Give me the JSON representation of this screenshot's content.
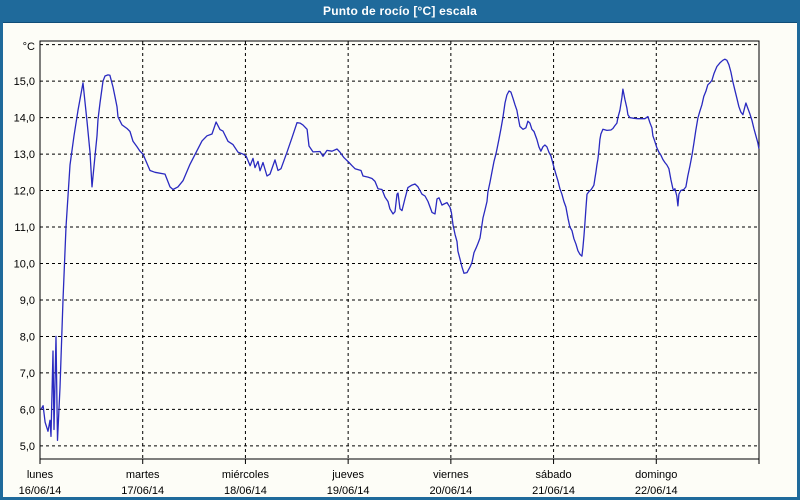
{
  "window": {
    "title": "Punto de rocío [°C] escala"
  },
  "colors": {
    "frame": "#1f6a9b",
    "frame_dark": "#0f4d78",
    "series_line": "#2a2ac0",
    "grid": "#000000",
    "text": "#000000",
    "plot_background": "#fdfdf7"
  },
  "chart_data": {
    "type": "line",
    "title": "Punto de rocío [°C] escala",
    "ylabel": "°C",
    "grid": "dashed",
    "legend": "none",
    "ylim": [
      4.64,
      16.1
    ],
    "xlim_days": [
      0,
      7
    ],
    "yticks": [
      {
        "v": 5,
        "label": "5,0"
      },
      {
        "v": 6,
        "label": "6,0"
      },
      {
        "v": 7,
        "label": "7,0"
      },
      {
        "v": 8,
        "label": "8,0"
      },
      {
        "v": 9,
        "label": "9,0"
      },
      {
        "v": 10,
        "label": "10,0"
      },
      {
        "v": 11,
        "label": "11,0"
      },
      {
        "v": 12,
        "label": "12,0"
      },
      {
        "v": 13,
        "label": "13,0"
      },
      {
        "v": 14,
        "label": "14,0"
      },
      {
        "v": 15,
        "label": "15,0"
      }
    ],
    "ygrid_extra": [
      16
    ],
    "x_axis": {
      "days": [
        {
          "name": "lunes",
          "date": "16/06/14"
        },
        {
          "name": "martes",
          "date": "17/06/14"
        },
        {
          "name": "miércoles",
          "date": "18/06/14"
        },
        {
          "name": "jueves",
          "date": "19/06/14"
        },
        {
          "name": "viernes",
          "date": "20/06/14"
        },
        {
          "name": "sábado",
          "date": "21/06/14"
        },
        {
          "name": "domingo",
          "date": "22/06/14"
        }
      ]
    },
    "series": [
      {
        "name": "Punto de rocío [°C]",
        "color": "#2a2ac0",
        "points": [
          [
            0.01,
            6.0
          ],
          [
            0.03,
            6.1
          ],
          [
            0.05,
            5.65
          ],
          [
            0.078,
            5.4
          ],
          [
            0.097,
            5.7
          ],
          [
            0.107,
            5.26
          ],
          [
            0.127,
            7.6
          ],
          [
            0.136,
            5.45
          ],
          [
            0.156,
            8.0
          ],
          [
            0.17,
            5.15
          ],
          [
            0.195,
            6.6
          ],
          [
            0.224,
            9.0
          ],
          [
            0.253,
            11.0
          ],
          [
            0.292,
            12.7
          ],
          [
            0.331,
            13.5
          ],
          [
            0.37,
            14.2
          ],
          [
            0.419,
            14.95
          ],
          [
            0.458,
            13.9
          ],
          [
            0.487,
            13.05
          ],
          [
            0.506,
            12.1
          ],
          [
            0.535,
            12.95
          ],
          [
            0.555,
            13.5
          ],
          [
            0.565,
            13.95
          ],
          [
            0.584,
            14.4
          ],
          [
            0.613,
            15.0
          ],
          [
            0.633,
            15.14
          ],
          [
            0.662,
            15.17
          ],
          [
            0.681,
            15.16
          ],
          [
            0.711,
            14.84
          ],
          [
            0.73,
            14.57
          ],
          [
            0.75,
            14.3
          ],
          [
            0.759,
            14.02
          ],
          [
            0.798,
            13.8
          ],
          [
            0.847,
            13.7
          ],
          [
            0.876,
            13.62
          ],
          [
            0.905,
            13.35
          ],
          [
            0.944,
            13.2
          ],
          [
            0.974,
            13.08
          ],
          [
            1.003,
            13.0
          ],
          [
            1.071,
            12.55
          ],
          [
            1.12,
            12.5
          ],
          [
            1.217,
            12.45
          ],
          [
            1.266,
            12.1
          ],
          [
            1.295,
            12.03
          ],
          [
            1.343,
            12.1
          ],
          [
            1.392,
            12.27
          ],
          [
            1.46,
            12.72
          ],
          [
            1.529,
            13.1
          ],
          [
            1.577,
            13.36
          ],
          [
            1.626,
            13.5
          ],
          [
            1.675,
            13.55
          ],
          [
            1.714,
            13.88
          ],
          [
            1.752,
            13.67
          ],
          [
            1.782,
            13.63
          ],
          [
            1.83,
            13.35
          ],
          [
            1.879,
            13.26
          ],
          [
            1.928,
            13.05
          ],
          [
            1.977,
            13.0
          ],
          [
            2.006,
            12.95
          ],
          [
            2.025,
            12.82
          ],
          [
            2.045,
            12.68
          ],
          [
            2.074,
            12.88
          ],
          [
            2.093,
            12.63
          ],
          [
            2.122,
            12.8
          ],
          [
            2.142,
            12.54
          ],
          [
            2.171,
            12.77
          ],
          [
            2.21,
            12.4
          ],
          [
            2.239,
            12.45
          ],
          [
            2.288,
            12.84
          ],
          [
            2.317,
            12.55
          ],
          [
            2.346,
            12.6
          ],
          [
            2.405,
            13.05
          ],
          [
            2.453,
            13.45
          ],
          [
            2.502,
            13.86
          ],
          [
            2.531,
            13.85
          ],
          [
            2.56,
            13.8
          ],
          [
            2.6,
            13.68
          ],
          [
            2.619,
            13.22
          ],
          [
            2.658,
            13.06
          ],
          [
            2.726,
            13.07
          ],
          [
            2.755,
            12.94
          ],
          [
            2.794,
            13.1
          ],
          [
            2.843,
            13.08
          ],
          [
            2.892,
            13.14
          ],
          [
            2.921,
            13.05
          ],
          [
            2.96,
            12.9
          ],
          [
            3.008,
            12.77
          ],
          [
            3.038,
            12.68
          ],
          [
            3.067,
            12.6
          ],
          [
            3.125,
            12.55
          ],
          [
            3.145,
            12.4
          ],
          [
            3.193,
            12.37
          ],
          [
            3.232,
            12.33
          ],
          [
            3.261,
            12.25
          ],
          [
            3.291,
            12.05
          ],
          [
            3.33,
            12.03
          ],
          [
            3.359,
            11.82
          ],
          [
            3.388,
            11.7
          ],
          [
            3.407,
            11.5
          ],
          [
            3.437,
            11.36
          ],
          [
            3.456,
            11.42
          ],
          [
            3.476,
            11.9
          ],
          [
            3.485,
            11.93
          ],
          [
            3.505,
            11.5
          ],
          [
            3.524,
            11.45
          ],
          [
            3.553,
            11.77
          ],
          [
            3.582,
            12.08
          ],
          [
            3.621,
            12.15
          ],
          [
            3.651,
            12.18
          ],
          [
            3.68,
            12.1
          ],
          [
            3.719,
            11.9
          ],
          [
            3.748,
            11.85
          ],
          [
            3.777,
            11.7
          ],
          [
            3.816,
            11.4
          ],
          [
            3.846,
            11.36
          ],
          [
            3.865,
            11.77
          ],
          [
            3.885,
            11.8
          ],
          [
            3.914,
            11.6
          ],
          [
            3.933,
            11.63
          ],
          [
            3.962,
            11.67
          ],
          [
            3.992,
            11.54
          ],
          [
            4.005,
            11.4
          ],
          [
            4.021,
            11.06
          ],
          [
            4.04,
            10.8
          ],
          [
            4.06,
            10.6
          ],
          [
            4.069,
            10.34
          ],
          [
            4.089,
            10.12
          ],
          [
            4.108,
            9.9
          ],
          [
            4.128,
            9.73
          ],
          [
            4.157,
            9.75
          ],
          [
            4.186,
            9.9
          ],
          [
            4.206,
            10.03
          ],
          [
            4.225,
            10.3
          ],
          [
            4.245,
            10.42
          ],
          [
            4.264,
            10.55
          ],
          [
            4.284,
            10.7
          ],
          [
            4.313,
            11.25
          ],
          [
            4.332,
            11.47
          ],
          [
            4.352,
            11.7
          ],
          [
            4.361,
            11.96
          ],
          [
            4.381,
            12.23
          ],
          [
            4.4,
            12.5
          ],
          [
            4.42,
            12.8
          ],
          [
            4.439,
            13.0
          ],
          [
            4.449,
            13.14
          ],
          [
            4.468,
            13.4
          ],
          [
            4.488,
            13.7
          ],
          [
            4.507,
            14.0
          ],
          [
            4.527,
            14.4
          ],
          [
            4.546,
            14.62
          ],
          [
            4.566,
            14.73
          ],
          [
            4.585,
            14.7
          ],
          [
            4.605,
            14.53
          ],
          [
            4.624,
            14.35
          ],
          [
            4.643,
            14.2
          ],
          [
            4.653,
            14.04
          ],
          [
            4.672,
            13.76
          ],
          [
            4.702,
            13.68
          ],
          [
            4.731,
            13.72
          ],
          [
            4.75,
            13.9
          ],
          [
            4.77,
            13.85
          ],
          [
            4.789,
            13.68
          ],
          [
            4.809,
            13.62
          ],
          [
            4.838,
            13.4
          ],
          [
            4.857,
            13.2
          ],
          [
            4.877,
            13.08
          ],
          [
            4.896,
            13.2
          ],
          [
            4.916,
            13.25
          ],
          [
            4.935,
            13.2
          ],
          [
            4.955,
            13.05
          ],
          [
            4.974,
            12.95
          ],
          [
            5.003,
            12.64
          ],
          [
            5.023,
            12.45
          ],
          [
            5.042,
            12.27
          ],
          [
            5.062,
            12.05
          ],
          [
            5.081,
            11.9
          ],
          [
            5.101,
            11.7
          ],
          [
            5.12,
            11.55
          ],
          [
            5.14,
            11.24
          ],
          [
            5.159,
            11.0
          ],
          [
            5.179,
            10.9
          ],
          [
            5.198,
            10.68
          ],
          [
            5.218,
            10.53
          ],
          [
            5.237,
            10.35
          ],
          [
            5.257,
            10.25
          ],
          [
            5.276,
            10.2
          ],
          [
            5.286,
            10.43
          ],
          [
            5.296,
            10.77
          ],
          [
            5.305,
            11.1
          ],
          [
            5.315,
            11.5
          ],
          [
            5.325,
            11.9
          ],
          [
            5.344,
            11.97
          ],
          [
            5.364,
            12.02
          ],
          [
            5.383,
            12.1
          ],
          [
            5.393,
            12.15
          ],
          [
            5.402,
            12.33
          ],
          [
            5.412,
            12.5
          ],
          [
            5.422,
            12.7
          ],
          [
            5.432,
            12.86
          ],
          [
            5.441,
            13.1
          ],
          [
            5.451,
            13.4
          ],
          [
            5.461,
            13.55
          ],
          [
            5.48,
            13.68
          ],
          [
            5.519,
            13.65
          ],
          [
            5.558,
            13.66
          ],
          [
            5.578,
            13.7
          ],
          [
            5.597,
            13.78
          ],
          [
            5.617,
            13.85
          ],
          [
            5.626,
            14.0
          ],
          [
            5.646,
            14.2
          ],
          [
            5.665,
            14.55
          ],
          [
            5.675,
            14.78
          ],
          [
            5.694,
            14.5
          ],
          [
            5.714,
            14.26
          ],
          [
            5.724,
            14.08
          ],
          [
            5.743,
            14.0
          ],
          [
            5.782,
            13.98
          ],
          [
            5.821,
            13.97
          ],
          [
            5.86,
            13.97
          ],
          [
            5.889,
            13.97
          ],
          [
            5.918,
            14.03
          ],
          [
            5.938,
            13.86
          ],
          [
            5.957,
            13.72
          ],
          [
            5.967,
            13.5
          ],
          [
            5.986,
            13.35
          ],
          [
            6.006,
            13.17
          ],
          [
            6.025,
            13.05
          ],
          [
            6.045,
            12.97
          ],
          [
            6.064,
            12.85
          ],
          [
            6.084,
            12.77
          ],
          [
            6.103,
            12.7
          ],
          [
            6.123,
            12.6
          ],
          [
            6.142,
            12.3
          ],
          [
            6.162,
            12.05
          ],
          [
            6.171,
            12.0
          ],
          [
            6.181,
            12.05
          ],
          [
            6.2,
            11.85
          ],
          [
            6.21,
            11.58
          ],
          [
            6.22,
            11.9
          ],
          [
            6.239,
            12.0
          ],
          [
            6.268,
            12.03
          ],
          [
            6.288,
            12.1
          ],
          [
            6.307,
            12.4
          ],
          [
            6.327,
            12.67
          ],
          [
            6.346,
            12.94
          ],
          [
            6.366,
            13.3
          ],
          [
            6.385,
            13.65
          ],
          [
            6.405,
            13.99
          ],
          [
            6.424,
            14.17
          ],
          [
            6.444,
            14.35
          ],
          [
            6.463,
            14.58
          ],
          [
            6.483,
            14.72
          ],
          [
            6.502,
            14.9
          ],
          [
            6.522,
            14.95
          ],
          [
            6.541,
            15.02
          ],
          [
            6.561,
            15.2
          ],
          [
            6.59,
            15.4
          ],
          [
            6.619,
            15.5
          ],
          [
            6.648,
            15.57
          ],
          [
            6.668,
            15.6
          ],
          [
            6.687,
            15.57
          ],
          [
            6.707,
            15.45
          ],
          [
            6.726,
            15.25
          ],
          [
            6.746,
            14.98
          ],
          [
            6.765,
            14.75
          ],
          [
            6.785,
            14.53
          ],
          [
            6.804,
            14.3
          ],
          [
            6.824,
            14.15
          ],
          [
            6.843,
            14.08
          ],
          [
            6.863,
            14.3
          ],
          [
            6.872,
            14.4
          ],
          [
            6.892,
            14.25
          ],
          [
            6.911,
            14.1
          ],
          [
            6.931,
            13.93
          ],
          [
            6.95,
            13.7
          ],
          [
            6.97,
            13.5
          ],
          [
            6.989,
            13.3
          ],
          [
            6.999,
            13.15
          ]
        ]
      }
    ]
  }
}
